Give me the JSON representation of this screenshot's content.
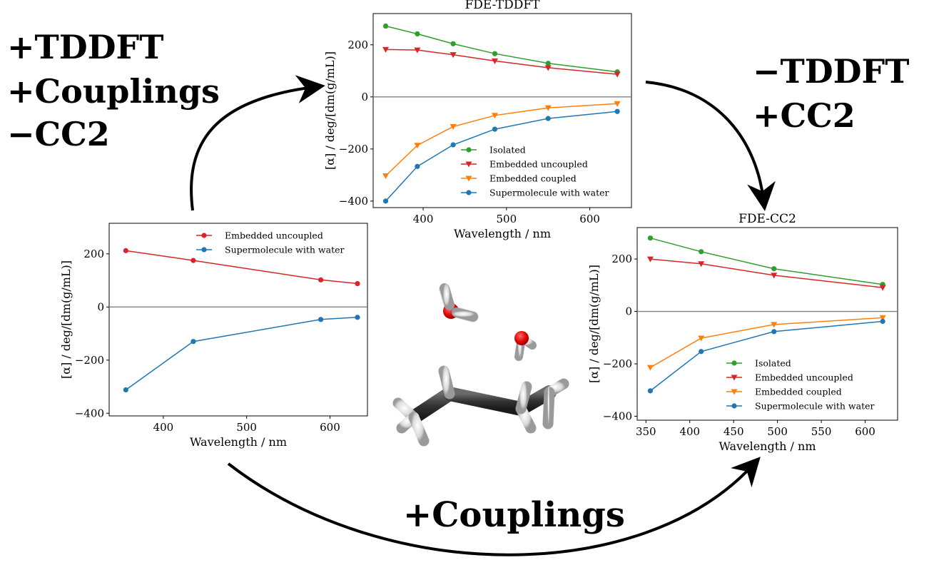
{
  "annotations": {
    "top_left": [
      "+TDDFT",
      "+Couplings",
      "−CC2"
    ],
    "top_right": [
      "−TDDFT",
      "+CC2"
    ],
    "bottom": "+Couplings"
  },
  "colors": {
    "Isolated": "#2ca02c",
    "Embedded uncoupled": "#d62728",
    "Embedded coupled": "#ff7f0e",
    "Supermolecule with water": "#1f77b4",
    "zero_line": "#808080"
  },
  "molecule": {
    "description_icon": "molecule-icon",
    "atoms": [
      "carbon",
      "hydrogen",
      "oxygen"
    ]
  },
  "chart_data": [
    {
      "id": "left",
      "type": "line",
      "title": "",
      "xlabel": "Wavelength / nm",
      "ylabel": "[α] / deg/[dm(g/mL)]",
      "xlim": [
        335,
        645
      ],
      "ylim": [
        -410,
        315
      ],
      "xticks": [
        400,
        500,
        600
      ],
      "yticks": [
        -400,
        -200,
        0,
        200
      ],
      "ytick_labels": [
        "−400",
        "−200",
        "0",
        "200"
      ],
      "zero_line": true,
      "legend": "top-right",
      "series": [
        {
          "name": "Embedded uncoupled",
          "marker": "circle",
          "x": [
            355,
            436,
            589,
            633
          ],
          "y": [
            212,
            175,
            102,
            88
          ]
        },
        {
          "name": "Supermolecule with water",
          "marker": "circle",
          "x": [
            355,
            436,
            589,
            633
          ],
          "y": [
            -312,
            -130,
            -47,
            -39
          ]
        }
      ]
    },
    {
      "id": "top",
      "type": "line",
      "title": "FDE-TDDFT",
      "xlabel": "Wavelength / nm",
      "ylabel": "[α] / deg/[dm(g/mL)]",
      "xlim": [
        340,
        650
      ],
      "ylim": [
        -425,
        320
      ],
      "xticks": [
        400,
        500,
        600
      ],
      "yticks": [
        -400,
        -200,
        0,
        200
      ],
      "ytick_labels": [
        "−400",
        "−200",
        "0",
        "200"
      ],
      "zero_line": true,
      "legend": "bottom-right",
      "series": [
        {
          "name": "Isolated",
          "marker": "circle",
          "x": [
            355,
            393,
            436,
            486,
            550,
            633
          ],
          "y": [
            272,
            242,
            204,
            166,
            129,
            96
          ]
        },
        {
          "name": "Embedded uncoupled",
          "marker": "triangle",
          "x": [
            355,
            393,
            436,
            486,
            550,
            633
          ],
          "y": [
            182,
            180,
            162,
            138,
            112,
            87
          ]
        },
        {
          "name": "Embedded coupled",
          "marker": "triangle",
          "x": [
            355,
            393,
            436,
            486,
            550,
            633
          ],
          "y": [
            -303,
            -186,
            -114,
            -71,
            -42,
            -26
          ]
        },
        {
          "name": "Supermolecule with water",
          "marker": "circle",
          "x": [
            355,
            393,
            436,
            486,
            550,
            633
          ],
          "y": [
            -400,
            -267,
            -184,
            -124,
            -83,
            -56
          ]
        }
      ]
    },
    {
      "id": "right",
      "type": "line",
      "title": "FDE-CC2",
      "xlabel": "Wavelength / nm",
      "ylabel": "[α] / deg/[dm(g/mL)]",
      "xlim": [
        340,
        637
      ],
      "ylim": [
        -415,
        320
      ],
      "xticks": [
        350,
        400,
        450,
        500,
        550,
        600
      ],
      "yticks": [
        -400,
        -200,
        0,
        200
      ],
      "ytick_labels": [
        "−400",
        "−200",
        "0",
        "200"
      ],
      "zero_line": true,
      "legend": "bottom-right",
      "series": [
        {
          "name": "Isolated",
          "marker": "circle",
          "x": [
            355,
            413,
            496,
            620
          ],
          "y": [
            280,
            228,
            163,
            103
          ]
        },
        {
          "name": "Embedded uncoupled",
          "marker": "triangle",
          "x": [
            355,
            413,
            496,
            620
          ],
          "y": [
            200,
            182,
            138,
            91
          ]
        },
        {
          "name": "Embedded coupled",
          "marker": "triangle",
          "x": [
            355,
            413,
            496,
            620
          ],
          "y": [
            -214,
            -102,
            -50,
            -24
          ]
        },
        {
          "name": "Supermolecule with water",
          "marker": "circle",
          "x": [
            355,
            413,
            496,
            620
          ],
          "y": [
            -303,
            -153,
            -77,
            -38
          ]
        }
      ]
    }
  ]
}
